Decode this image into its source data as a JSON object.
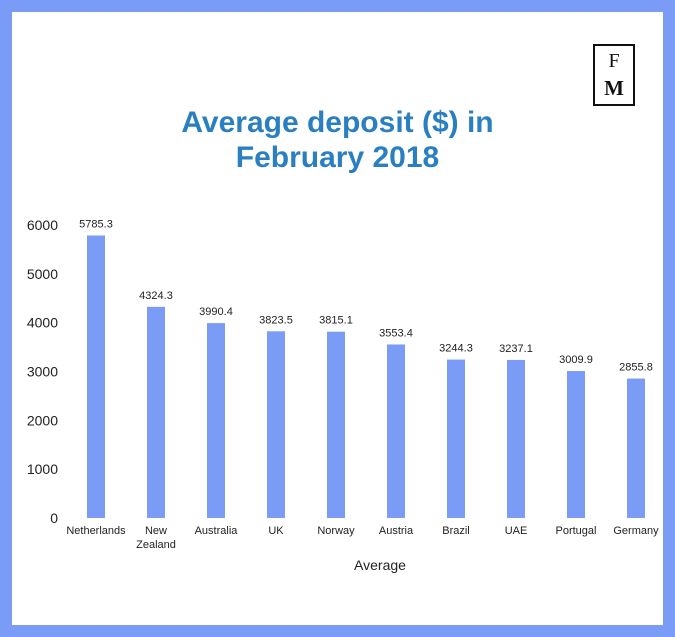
{
  "logo": {
    "line1": "F",
    "line2": "M"
  },
  "chart_data": {
    "type": "bar",
    "title_lines": [
      "Average deposit ($) in",
      "February 2018"
    ],
    "categories": [
      "Netherlands",
      "New Zealand",
      "Australia",
      "UK",
      "Norway",
      "Austria",
      "Brazil",
      "UAE",
      "Portugal",
      "Germany"
    ],
    "category_lines": [
      [
        "Netherlands"
      ],
      [
        "New",
        "Zealand"
      ],
      [
        "Australia"
      ],
      [
        "UK"
      ],
      [
        "Norway"
      ],
      [
        "Austria"
      ],
      [
        "Brazil"
      ],
      [
        "UAE"
      ],
      [
        "Portugal"
      ],
      [
        "Germany"
      ]
    ],
    "values": [
      5785.3,
      4324.3,
      3990.4,
      3823.5,
      3815.1,
      3553.4,
      3244.3,
      3237.1,
      3009.9,
      2855.8
    ],
    "value_labels": [
      "5785.3",
      "4324.3",
      "3990.4",
      "3823.5",
      "3815.1",
      "3553.4",
      "3244.3",
      "3237.1",
      "3009.9",
      "2855.8"
    ],
    "xlabel": "Average",
    "ylabel": "",
    "ylim": [
      0,
      6000
    ],
    "yticks": [
      0,
      1000,
      2000,
      3000,
      4000,
      5000,
      6000
    ],
    "grid": false,
    "bar_color": "#7b9cf6"
  },
  "colors": {
    "border": "#7b9cf6",
    "title": "#2a7fc0"
  }
}
